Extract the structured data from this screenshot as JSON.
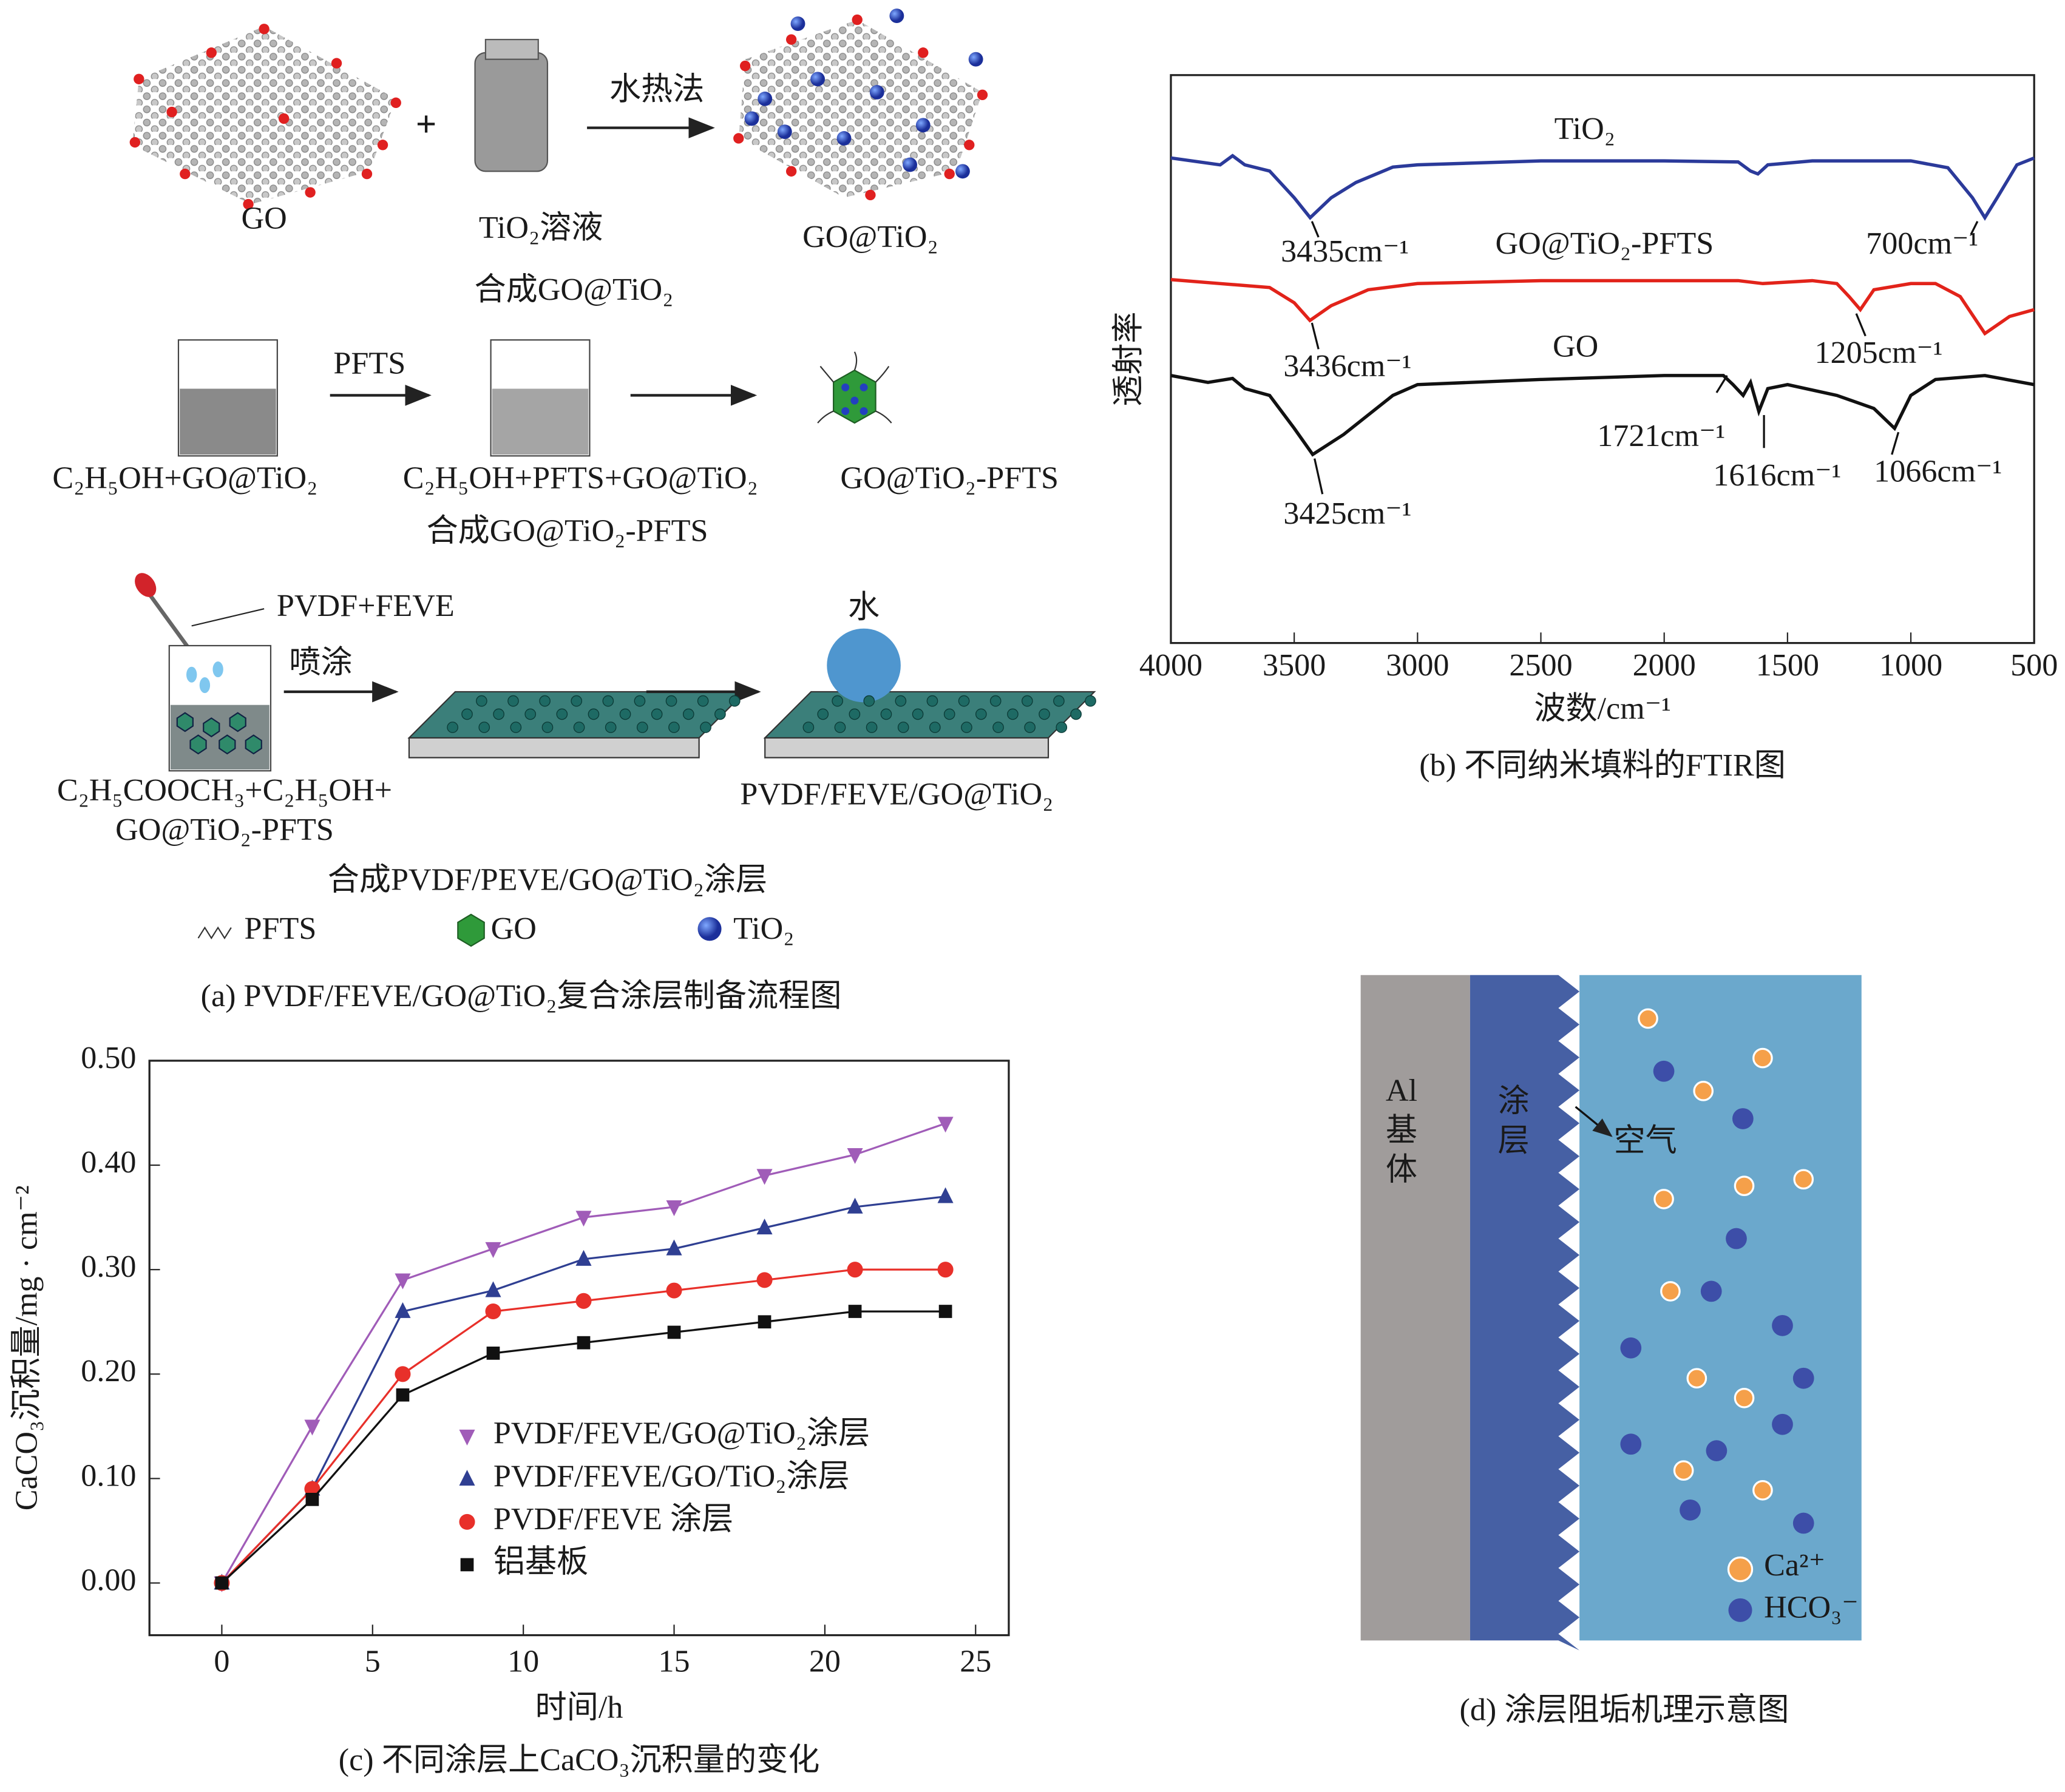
{
  "panel_a": {
    "labels": [
      "GO",
      "TiO₂溶液",
      "合成GO@TiO₂",
      "水热法",
      "GO@TiO₂",
      "PFTS",
      "C₂H₅OH+GO@TiO₂",
      "C₂H₅OH+PFTS+GO@TiO₂",
      "合成GO@TiO₂-PFTS",
      "GO@TiO₂-PFTS",
      "PVDF+FEVE",
      "喷涂",
      "水",
      "C₂H₅COOCH₃+C₂H₅OH+",
      "GO@TiO₂-PFTS",
      "PVDF/FEVE/GO@TiO₂",
      "合成PVDF/PEVE/GO@TiO₂涂层"
    ],
    "legend": [
      "PFTS",
      "GO",
      "TiO₂"
    ],
    "caption": "(a) PVDF/FEVE/GO@TiO₂复合涂层制备流程图"
  },
  "chart_data": [
    {
      "type": "line",
      "caption": "(b) 不同纳米填料的FTIR图",
      "xlabel": "波数/cm⁻¹",
      "ylabel": "透射率",
      "xlim": [
        4000,
        500
      ],
      "ylim": [
        0,
        100
      ],
      "xticks": [
        4000,
        3500,
        3000,
        2500,
        2000,
        1500,
        1000,
        500
      ],
      "series": [
        {
          "name": "TiO₂",
          "color": "#2b3a9a",
          "x": [
            4000,
            3800,
            3750,
            3700,
            3600,
            3500,
            3435,
            3350,
            3250,
            3100,
            3000,
            2500,
            2000,
            1700,
            1650,
            1620,
            1580,
            1400,
            1000,
            850,
            750,
            700,
            650,
            570,
            500
          ],
          "values": [
            85.4,
            84.2,
            85.8,
            84.2,
            83.1,
            78.4,
            74.9,
            78.4,
            81.1,
            83.8,
            84.2,
            84.9,
            84.9,
            84.7,
            83.1,
            82.6,
            84.2,
            84.9,
            84.9,
            83.7,
            78.4,
            74.9,
            78.4,
            84.2,
            85.4
          ]
        },
        {
          "name": "GO@TiO₂-PFTS",
          "color": "#e2231a",
          "x": [
            4000,
            3800,
            3600,
            3500,
            3436,
            3350,
            3200,
            3000,
            2500,
            2000,
            1700,
            1600,
            1400,
            1300,
            1250,
            1205,
            1150,
            1000,
            900,
            800,
            700,
            600,
            500
          ],
          "values": [
            64.0,
            63.3,
            62.6,
            59.9,
            56.8,
            59.4,
            62.2,
            63.3,
            63.8,
            63.8,
            63.8,
            63.3,
            63.8,
            63.3,
            61.0,
            58.7,
            62.2,
            63.3,
            63.3,
            61.0,
            54.5,
            57.5,
            58.7
          ]
        },
        {
          "name": "GO",
          "color": "#111111",
          "x": [
            4000,
            3850,
            3750,
            3700,
            3600,
            3500,
            3425,
            3300,
            3100,
            3000,
            2500,
            2000,
            1760,
            1721,
            1680,
            1650,
            1616,
            1580,
            1500,
            1300,
            1150,
            1066,
            1000,
            900,
            700,
            500
          ],
          "values": [
            47.1,
            45.9,
            46.6,
            44.8,
            43.6,
            37.8,
            33.2,
            36.7,
            43.6,
            45.5,
            46.4,
            47.1,
            47.1,
            45.5,
            43.6,
            45.9,
            40.8,
            44.8,
            45.5,
            43.6,
            41.3,
            37.8,
            43.6,
            46.4,
            47.1,
            45.5
          ]
        }
      ],
      "annotations": [
        "3435cm⁻¹",
        "3436cm⁻¹",
        "3425cm⁻¹",
        "700cm⁻¹",
        "1205cm⁻¹",
        "1721cm⁻¹",
        "1616cm⁻¹",
        "1066cm⁻¹"
      ]
    },
    {
      "type": "line",
      "caption": "(c) 不同涂层上CaCO₃沉积量的变化",
      "xlabel": "时间/h",
      "ylabel": "CaCO₃沉积量/mg · cm⁻²",
      "xlim": [
        -2.4,
        26.1
      ],
      "ylim": [
        -0.05,
        0.5
      ],
      "xticks": [
        0,
        5,
        10,
        15,
        20,
        25
      ],
      "yticks": [
        {
          "value": 0,
          "label": "0.00"
        },
        {
          "value": 0.1,
          "label": "0.10"
        },
        {
          "value": 0.2,
          "label": "0.20"
        },
        {
          "value": 0.3,
          "label": "0.30"
        },
        {
          "value": 0.4,
          "label": "0.40"
        },
        {
          "value": 0.5,
          "label": "0.50"
        }
      ],
      "x": [
        0,
        3,
        6,
        9,
        12,
        15,
        18,
        21,
        24
      ],
      "series": [
        {
          "name": "PVDF/FEVE/GO@TiO₂涂层",
          "color": "#a05cb8",
          "marker": "triangle-down",
          "values": [
            0,
            0.15,
            0.29,
            0.32,
            0.35,
            0.36,
            0.39,
            0.41,
            0.44
          ]
        },
        {
          "name": "PVDF/FEVE/GO/TiO₂涂层",
          "color": "#2f3f92",
          "marker": "triangle-up",
          "values": [
            0,
            0.09,
            0.26,
            0.28,
            0.31,
            0.32,
            0.34,
            0.36,
            0.37
          ]
        },
        {
          "name": "PVDF/FEVE 涂层",
          "color": "#e8302a",
          "marker": "circle",
          "values": [
            0,
            0.09,
            0.2,
            0.26,
            0.27,
            0.28,
            0.29,
            0.3,
            0.3
          ]
        },
        {
          "name": "铝基板",
          "color": "#111111",
          "marker": "square",
          "values": [
            0,
            0.08,
            0.18,
            0.22,
            0.23,
            0.24,
            0.25,
            0.26,
            0.26
          ]
        }
      ]
    }
  ],
  "panel_d": {
    "substrate": [
      "Al",
      "基",
      "体"
    ],
    "coating": [
      "涂",
      "层"
    ],
    "air": "空气",
    "legend": [
      "Ca²⁺",
      "HCO₃⁻"
    ],
    "caption": "(d) 涂层阻垢机理示意图"
  }
}
